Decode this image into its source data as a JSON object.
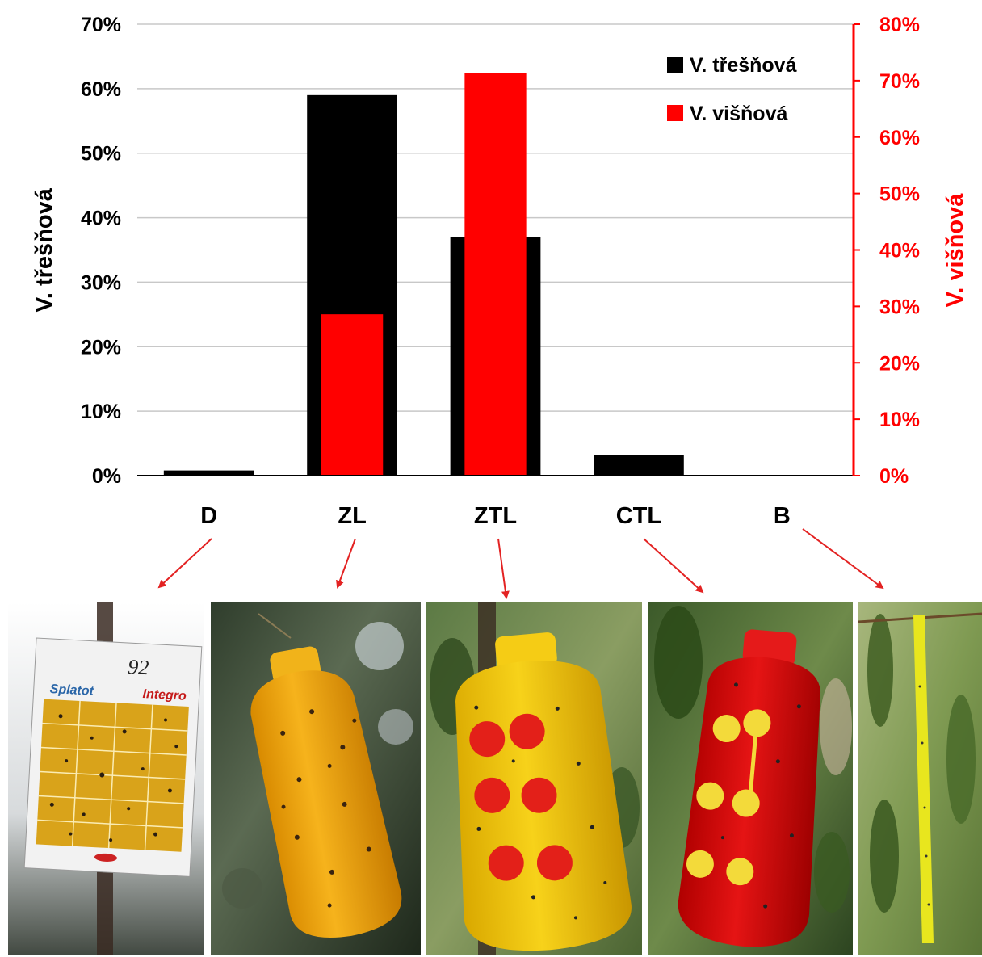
{
  "colors": {
    "left_series": "#000000",
    "right_series": "#ff0000",
    "grid": "#c8c8c8",
    "arrow": "#e32222"
  },
  "chart_data": {
    "type": "bar",
    "categories": [
      "D",
      "ZL",
      "ZTL",
      "CTL",
      "B"
    ],
    "series": [
      {
        "name": "V. třešňová",
        "axis": "left",
        "color": "#000000",
        "values": [
          0.8,
          59,
          37,
          3.2,
          0
        ]
      },
      {
        "name": "V. višňová",
        "axis": "right",
        "color": "#ff0000",
        "values": [
          0,
          28.6,
          71.4,
          0,
          0
        ]
      }
    ],
    "y_left": {
      "label": "V. třešňová",
      "ylim": [
        0,
        70
      ],
      "ticks": [
        "0%",
        "10%",
        "20%",
        "30%",
        "40%",
        "50%",
        "60%",
        "70%"
      ]
    },
    "y_right": {
      "label": "V. višňová",
      "ylim": [
        0,
        80
      ],
      "ticks": [
        "0%",
        "10%",
        "20%",
        "30%",
        "40%",
        "50%",
        "60%",
        "70%",
        "80%"
      ]
    },
    "grid": true,
    "legend_position": "top-right"
  },
  "photos": [
    {
      "category": "D",
      "icon": "yellow-sticky-card-trap",
      "card_text": "92",
      "brand_1": "Splatot",
      "brand_2": "Integro"
    },
    {
      "category": "ZL",
      "icon": "yellow-bottle-trap"
    },
    {
      "category": "ZTL",
      "icon": "yellow-bottle-trap-red-dots"
    },
    {
      "category": "CTL",
      "icon": "red-bottle-trap-yellow-dots"
    },
    {
      "category": "B",
      "icon": "yellow-strip-trap"
    }
  ]
}
